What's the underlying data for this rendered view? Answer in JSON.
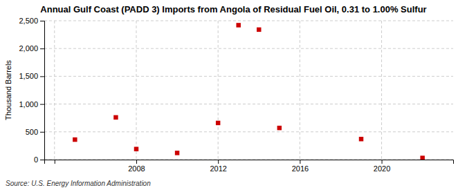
{
  "chart_data": {
    "type": "scatter",
    "title": "Annual Gulf Coast (PADD 3) Imports from Angola of Residual Fuel Oil, 0.31 to 1.00% Sulfur",
    "ylabel": "Thousand Barrels",
    "source": "Source: U.S. Energy Information Administration",
    "x": [
      2005,
      2007,
      2008,
      2010,
      2012,
      2013,
      2014,
      2015,
      2019,
      2022
    ],
    "values": [
      360,
      760,
      190,
      120,
      660,
      2420,
      2340,
      570,
      370,
      30
    ],
    "color": "#cc0000",
    "marker": "square",
    "xlim": [
      2003.5,
      2023.5
    ],
    "ylim": [
      0,
      2500
    ],
    "xticks": [
      {
        "value": 2004,
        "label": null
      },
      2008,
      2012,
      2016,
      2020
    ],
    "yticks": [
      0,
      500,
      {
        "value": 1000,
        "label": "1,000"
      },
      {
        "value": 1500,
        "label": "1,500"
      },
      {
        "value": 2000,
        "label": "2,000"
      },
      {
        "value": 2500,
        "label": "2,500"
      }
    ],
    "grid": true
  }
}
